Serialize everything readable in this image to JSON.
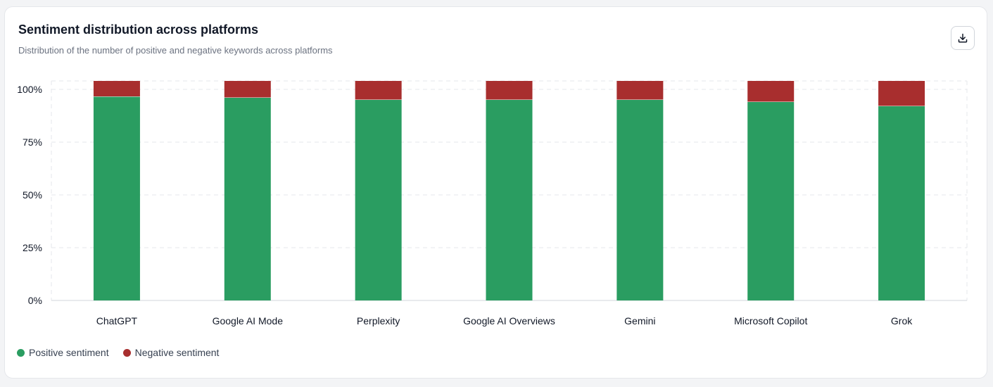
{
  "card": {
    "title": "Sentiment distribution across platforms",
    "subtitle": "Distribution of the number of positive and negative keywords across platforms",
    "download_icon": "download-icon"
  },
  "colors": {
    "positive": "#2a9d61",
    "negative": "#a82e2e",
    "grid": "#e5e7eb"
  },
  "chart_data": {
    "type": "bar",
    "stacked": true,
    "categories": [
      "ChatGPT",
      "Google AI Mode",
      "Perplexity",
      "Google AI Overviews",
      "Gemini",
      "Microsoft Copilot",
      "Grok"
    ],
    "series": [
      {
        "name": "Positive sentiment",
        "values": [
          96.5,
          96,
          95,
          95,
          95,
          94,
          92
        ],
        "color": "#2a9d61"
      },
      {
        "name": "Negative sentiment",
        "values": [
          3.5,
          4,
          5,
          5,
          5,
          6,
          8
        ],
        "color": "#a82e2e"
      }
    ],
    "yticks": [
      "0%",
      "25%",
      "50%",
      "75%",
      "100%"
    ],
    "ylim": [
      0,
      100
    ],
    "grid": true,
    "legend_position": "bottom-left"
  }
}
